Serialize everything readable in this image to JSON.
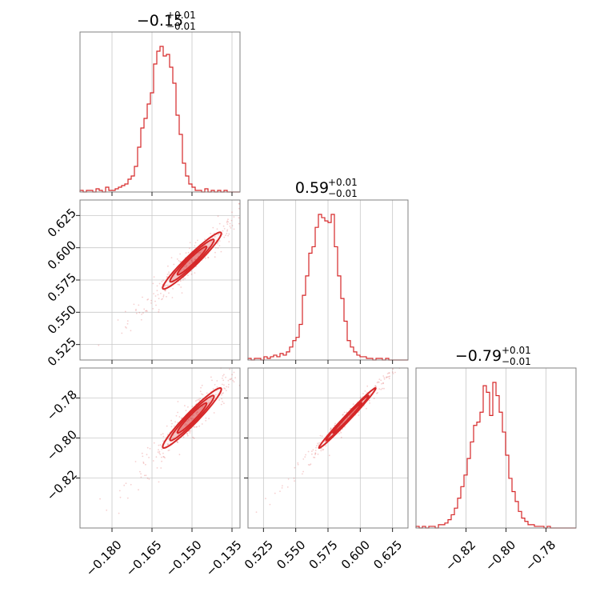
{
  "chart_data": {
    "type": "corner",
    "color": "#d62728",
    "parameters": [
      {
        "title": {
          "value": "−0.15",
          "upper": "+0.01",
          "lower": "−0.01"
        },
        "median": -0.15,
        "sigma": 0.0055,
        "range": [
          -0.192,
          -0.132
        ],
        "ticks": [
          -0.18,
          -0.165,
          -0.15,
          -0.135
        ],
        "tick_labels": [
          "−0.180",
          "−0.165",
          "−0.150",
          "−0.135"
        ],
        "hist": {
          "bin_start": -0.192,
          "bin_width": 0.0012,
          "counts": [
            1,
            0,
            1,
            1,
            0,
            2,
            1,
            0,
            3,
            1,
            1,
            2,
            3,
            4,
            5,
            8,
            10,
            16,
            28,
            40,
            46,
            55,
            62,
            80,
            88,
            91,
            85,
            86,
            78,
            68,
            48,
            36,
            18,
            10,
            5,
            3,
            1,
            1,
            0,
            2,
            0,
            1,
            0,
            1,
            0,
            1,
            0,
            0,
            0,
            0
          ]
        }
      },
      {
        "title": {
          "value": "0.59",
          "upper": "+0.01",
          "lower": "−0.01"
        },
        "median": 0.59,
        "sigma": 0.011,
        "range": [
          0.513,
          0.637
        ],
        "ticks": [
          0.525,
          0.55,
          0.575,
          0.6,
          0.625
        ],
        "tick_labels": [
          "0.525",
          "0.550",
          "0.575",
          "0.600",
          "0.625"
        ],
        "hist": {
          "bin_start": 0.513,
          "bin_width": 0.00248,
          "counts": [
            1,
            0,
            1,
            1,
            0,
            2,
            1,
            2,
            3,
            2,
            4,
            3,
            5,
            8,
            12,
            14,
            22,
            40,
            52,
            66,
            70,
            82,
            90,
            88,
            86,
            85,
            90,
            70,
            52,
            38,
            24,
            12,
            8,
            5,
            3,
            2,
            2,
            1,
            1,
            0,
            1,
            1,
            0,
            1,
            0,
            0,
            0,
            0,
            0,
            0
          ]
        }
      },
      {
        "title": {
          "value": "−0.79",
          "upper": "+0.01",
          "lower": "−0.01"
        },
        "median": -0.79,
        "sigma": 0.0075,
        "range": [
          -0.845,
          -0.765
        ],
        "ticks": [
          -0.82,
          -0.8,
          -0.78
        ],
        "tick_labels": [
          "−0.82",
          "−0.80",
          "−0.78"
        ],
        "hist": {
          "bin_start": -0.845,
          "bin_width": 0.0016,
          "counts": [
            1,
            0,
            1,
            0,
            1,
            1,
            0,
            2,
            2,
            3,
            5,
            8,
            12,
            18,
            25,
            32,
            42,
            52,
            62,
            64,
            70,
            86,
            82,
            68,
            88,
            80,
            70,
            58,
            44,
            30,
            22,
            16,
            10,
            6,
            4,
            2,
            2,
            1,
            1,
            1,
            0,
            1,
            0,
            0,
            0,
            0,
            0,
            0,
            0,
            0
          ]
        }
      }
    ],
    "correlations": {
      "1-0": 0.96,
      "2-0": 0.96,
      "2-1": 0.99
    },
    "grid": true,
    "levels": [
      "1-sigma",
      "1.5-sigma",
      "2-sigma"
    ]
  }
}
